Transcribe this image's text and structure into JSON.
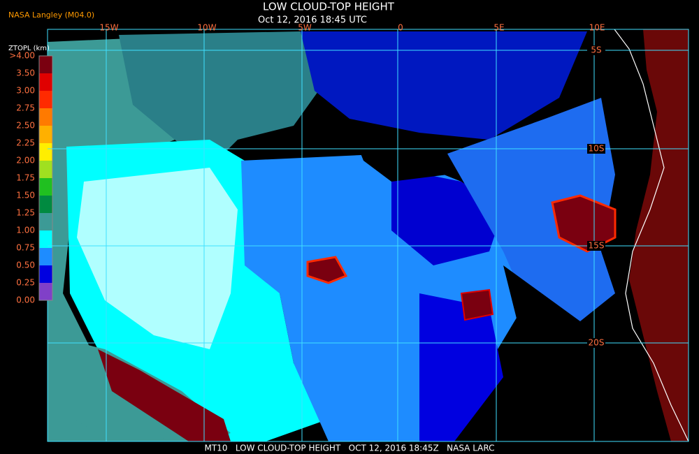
{
  "header": {
    "source": "NASA Langley (M04.0)",
    "title": "LOW CLOUD-TOP HEIGHT",
    "subtitle": "Oct 12, 2016 18:45 UTC"
  },
  "colorbar": {
    "title": "ZTOPL (km)",
    "labels": [
      ">4.00",
      "3.50",
      "3.00",
      "2.75",
      "2.50",
      "2.25",
      "2.00",
      "1.75",
      "1.50",
      "1.25",
      "1.00",
      "0.75",
      "0.50",
      "0.25",
      "0.00"
    ],
    "colors": [
      "#7a0010",
      "#e00000",
      "#ff2a00",
      "#ff7a00",
      "#ffb000",
      "#ffee00",
      "#a0e020",
      "#20c020",
      "#008a40",
      "#3c9a96",
      "#00ffff",
      "#1e8cff",
      "#0000e0",
      "#8040c8"
    ]
  },
  "map": {
    "lon_labels": [
      "15W",
      "10W",
      "5W",
      "0",
      "5E",
      "10E"
    ],
    "lat_labels": [
      "5S",
      "10S",
      "15S",
      "20S"
    ]
  },
  "footer": "MT10   LOW CLOUD-TOP HEIGHT   OCT 12, 2016 18:45Z   NASA LARC"
}
